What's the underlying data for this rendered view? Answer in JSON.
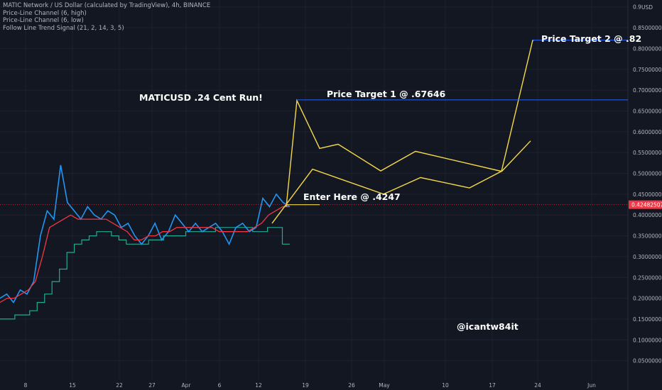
{
  "header": {
    "title": "MATIC Network / US Dollar (calculated by TradingView), 4h, BINANCE",
    "indicators": [
      "Price-Line Channel (6, high)",
      "Price-Line Channel (6, low)",
      "Follow Line Trend Signal (21, 2, 14, 3, 5)"
    ]
  },
  "currency": "USD",
  "colors": {
    "background": "#131722",
    "grid": "#1e2230",
    "price_up": "#2196f3",
    "price_down": "#f23645",
    "forecast": "#f5d94a",
    "target_line": "#2962ff",
    "channel_low": "#22ab94",
    "current_price_label": "#f23645"
  },
  "chart_data": {
    "type": "line",
    "y_ticks": [
      "0.05000000",
      "0.10000000",
      "0.15000000",
      "0.20000000",
      "0.25000000",
      "0.30000000",
      "0.35000000",
      "0.40000000",
      "0.45000000",
      "0.50000000",
      "0.55000000",
      "0.60000000",
      "0.65000000",
      "0.70000000",
      "0.75000000",
      "0.80000000",
      "0.85000000",
      "0.9"
    ],
    "ylim": [
      0.0,
      0.9
    ],
    "x_ticks": [
      "8",
      "15",
      "22",
      "27",
      "Apr",
      "6",
      "12",
      "19",
      "26",
      "May",
      "10",
      "17",
      "24",
      "Jun"
    ],
    "current_price": 0.4248,
    "current_price_label": "0.42482507",
    "series": [
      {
        "values": [
          0.2,
          0.21,
          0.19,
          0.22,
          0.21,
          0.24,
          0.35,
          0.41,
          0.39,
          0.52,
          0.43,
          0.41,
          0.39,
          0.42,
          0.4,
          0.39,
          0.41,
          0.4,
          0.37,
          0.38,
          0.35,
          0.33,
          0.35,
          0.38,
          0.34,
          0.36,
          0.4,
          0.38,
          0.36,
          0.38,
          0.36,
          0.37,
          0.38,
          0.36,
          0.33,
          0.37,
          0.38,
          0.36,
          0.37,
          0.44,
          0.42,
          0.45,
          0.43,
          0.42
        ]
      },
      {
        "values": [
          0.19,
          0.2,
          0.2,
          0.21,
          0.22,
          0.24,
          0.3,
          0.37,
          0.38,
          0.39,
          0.4,
          0.39,
          0.39,
          0.39,
          0.39,
          0.39,
          0.38,
          0.37,
          0.36,
          0.34,
          0.34,
          0.35,
          0.35,
          0.36,
          0.36,
          0.37,
          0.37,
          0.37,
          0.37,
          0.37,
          0.37,
          0.36,
          0.36,
          0.36,
          0.36,
          0.36,
          0.37,
          0.38,
          0.4,
          0.41,
          0.42,
          0.42
        ]
      }
    ],
    "channel_low": [
      0.15,
      0.15,
      0.16,
      0.16,
      0.17,
      0.19,
      0.21,
      0.24,
      0.27,
      0.31,
      0.33,
      0.34,
      0.35,
      0.36,
      0.36,
      0.35,
      0.34,
      0.33,
      0.33,
      0.33,
      0.34,
      0.34,
      0.35,
      0.35,
      0.35,
      0.36,
      0.36,
      0.36,
      0.36,
      0.37,
      0.37,
      0.37,
      0.37,
      0.37,
      0.36,
      0.36,
      0.37,
      0.37,
      0.33,
      0.33
    ],
    "forecast_paths": [
      {
        "points": [
          [
            0.42,
            0
          ],
          [
            0.675,
            1
          ],
          [
            0.56,
            2
          ],
          [
            0.57,
            3
          ],
          [
            0.506,
            4
          ],
          [
            0.553,
            5
          ],
          [
            0.505,
            6
          ],
          [
            0.82,
            7
          ],
          [
            0.82,
            8
          ]
        ]
      },
      {
        "points": [
          [
            0.38,
            0
          ],
          [
            0.51,
            1
          ],
          [
            0.45,
            2
          ],
          [
            0.49,
            3
          ],
          [
            0.465,
            4
          ],
          [
            0.506,
            5
          ],
          [
            0.578,
            6
          ]
        ]
      }
    ],
    "annotations": [
      {
        "text": "MATICUSD .24 Cent Run!"
      },
      {
        "text": "Price Target 1 @ .67646",
        "value": 0.67646
      },
      {
        "text": "Price Target 2 @ .82",
        "value": 0.82
      },
      {
        "text": "Enter Here @ .4247",
        "value": 0.4247
      },
      {
        "text": "@icantw84it"
      }
    ]
  }
}
